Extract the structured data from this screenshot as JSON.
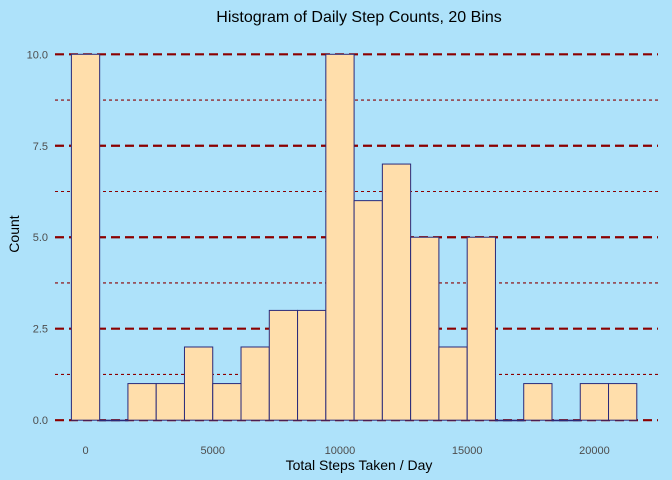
{
  "chart_data": {
    "type": "bar",
    "title": "Histogram of Daily Step Counts, 20 Bins",
    "xlabel": "Total Steps Taken / Day",
    "ylabel": "Count",
    "xlim": [
      -1200,
      22500
    ],
    "ylim": [
      -0.05,
      10.5
    ],
    "x_ticks": [
      {
        "value": 0,
        "label": "0"
      },
      {
        "value": 5000,
        "label": "5000"
      },
      {
        "value": 10000,
        "label": "10000"
      },
      {
        "value": 15000,
        "label": "15000"
      },
      {
        "value": 20000,
        "label": "20000"
      }
    ],
    "y_ticks": [
      {
        "value": 0,
        "label": "0.0"
      },
      {
        "value": 2.5,
        "label": "2.5"
      },
      {
        "value": 5,
        "label": "5.0"
      },
      {
        "value": 7.5,
        "label": "7.5"
      },
      {
        "value": 10,
        "label": "10.0"
      }
    ],
    "y_minor_gridlines": [
      1.25,
      3.75,
      6.25,
      8.75
    ],
    "grid": true,
    "bin_width": 1111,
    "bin_centers": [
      0,
      1111,
      2222,
      3333,
      4444,
      5556,
      6667,
      7778,
      8889,
      10000,
      11111,
      12222,
      13333,
      14444,
      15556,
      16667,
      17778,
      18889,
      20000,
      21111
    ],
    "values": [
      10,
      0,
      1,
      1,
      2,
      1,
      2,
      3,
      3,
      10,
      6,
      7,
      5,
      2,
      5,
      0,
      1,
      0,
      1,
      1
    ],
    "colors": {
      "background": "#aee2fa",
      "bar_fill": "#ffdeab",
      "bar_outline": "#2a2a7a",
      "major_grid": "#8b0000",
      "minor_grid": "#8b0000"
    }
  }
}
